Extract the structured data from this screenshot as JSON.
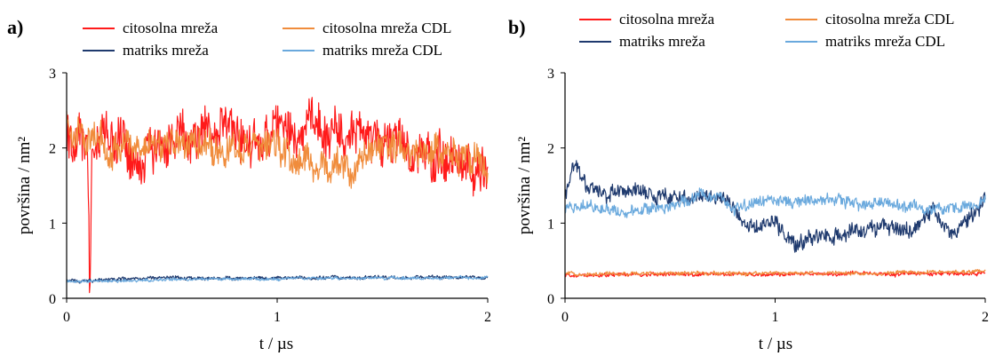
{
  "chart_data": [
    {
      "panel": "a)",
      "type": "line",
      "xlabel": "t / µs",
      "ylabel": "površina / nm²",
      "xlim": [
        0,
        2
      ],
      "ylim": [
        0,
        3
      ],
      "xticks": [
        "0",
        "1",
        "2"
      ],
      "yticks": [
        "0",
        "1",
        "2",
        "3"
      ],
      "grid": false,
      "legend": "top",
      "series": [
        {
          "name": "citosolna mreža",
          "color": "#ff1a1a",
          "x": [
            0,
            0.1,
            0.11,
            0.12,
            0.2,
            0.35,
            0.5,
            0.75,
            0.9,
            1.0,
            1.15,
            1.3,
            1.5,
            1.65,
            1.85,
            2.0
          ],
          "values": [
            2.1,
            2.1,
            0.0,
            2.0,
            2.2,
            1.9,
            2.1,
            2.3,
            2.1,
            2.15,
            2.3,
            2.2,
            2.1,
            1.9,
            1.75,
            1.7
          ],
          "noise": 0.32
        },
        {
          "name": "citosolna mreža CDL",
          "color": "#f08c3c",
          "x": [
            0,
            0.05,
            0.2,
            0.5,
            0.8,
            1.0,
            1.2,
            1.35,
            1.5,
            1.7,
            1.9,
            2.0
          ],
          "values": [
            2.4,
            2.2,
            2.0,
            2.1,
            2.0,
            2.0,
            1.75,
            1.7,
            2.05,
            1.95,
            1.9,
            1.7
          ],
          "noise": 0.22
        },
        {
          "name": "matriks mreža",
          "color": "#1f3a6e",
          "x": [
            0,
            0.5,
            1.0,
            1.5,
            2.0
          ],
          "values": [
            0.23,
            0.27,
            0.27,
            0.28,
            0.28
          ],
          "noise": 0.025
        },
        {
          "name": "matriks mreža CDL",
          "color": "#6aa9dd",
          "x": [
            0,
            0.5,
            1.0,
            1.5,
            2.0
          ],
          "values": [
            0.22,
            0.25,
            0.26,
            0.27,
            0.27
          ],
          "noise": 0.02
        }
      ]
    },
    {
      "panel": "b)",
      "type": "line",
      "xlabel": "t / µs",
      "ylabel": "površina / nm²",
      "xlim": [
        0,
        2
      ],
      "ylim": [
        0,
        3
      ],
      "xticks": [
        "0",
        "1",
        "2"
      ],
      "yticks": [
        "0",
        "1",
        "2",
        "3"
      ],
      "grid": false,
      "legend": "top",
      "series": [
        {
          "name": "citosolna mreža",
          "color": "#ff1a1a",
          "x": [
            0,
            1.0,
            2.0
          ],
          "values": [
            0.31,
            0.32,
            0.33
          ],
          "noise": 0.025
        },
        {
          "name": "citosolna mreža CDL",
          "color": "#f08c3c",
          "x": [
            0,
            1.0,
            2.0
          ],
          "values": [
            0.33,
            0.33,
            0.35
          ],
          "noise": 0.025
        },
        {
          "name": "matriks mreža",
          "color": "#1f3a6e",
          "x": [
            0,
            0.04,
            0.1,
            0.2,
            0.35,
            0.5,
            0.6,
            0.7,
            0.8,
            0.85,
            1.0,
            1.1,
            1.25,
            1.4,
            1.55,
            1.65,
            1.75,
            1.85,
            2.0
          ],
          "values": [
            1.4,
            1.8,
            1.5,
            1.35,
            1.45,
            1.3,
            1.35,
            1.4,
            1.2,
            0.9,
            1.0,
            0.75,
            0.85,
            0.9,
            0.95,
            0.9,
            1.15,
            0.85,
            1.3
          ],
          "noise": 0.11
        },
        {
          "name": "matriks mreža CDL",
          "color": "#6aa9dd",
          "x": [
            0,
            0.1,
            0.3,
            0.5,
            0.7,
            0.8,
            1.0,
            1.2,
            1.5,
            1.8,
            2.0
          ],
          "values": [
            1.2,
            1.25,
            1.1,
            1.25,
            1.4,
            1.2,
            1.3,
            1.3,
            1.25,
            1.2,
            1.25
          ],
          "noise": 0.08
        }
      ]
    }
  ],
  "legend_order": [
    0,
    2,
    1,
    3
  ]
}
